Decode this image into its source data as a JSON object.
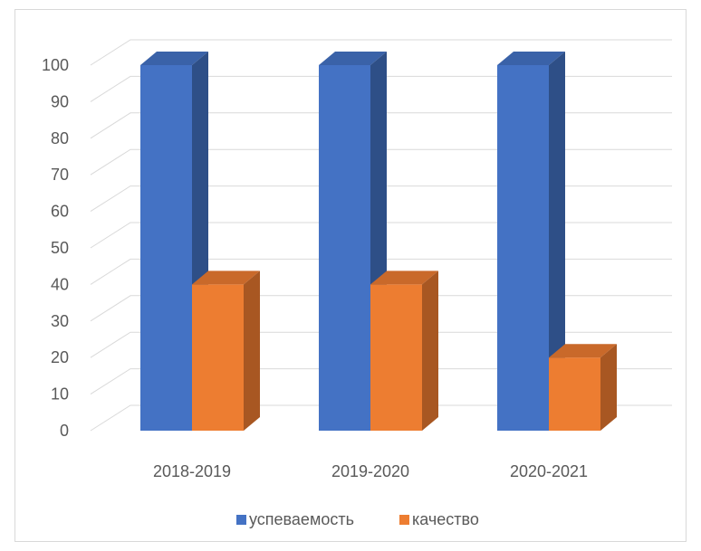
{
  "chart_data": {
    "type": "bar",
    "title": "",
    "xlabel": "",
    "ylabel": "",
    "categories": [
      "2018-2019",
      "2019-2020",
      "2020-2021"
    ],
    "series": [
      {
        "name": "успеваемость",
        "values": [
          100,
          100,
          100
        ],
        "color": "#4472C4",
        "top": "#3A62A8",
        "side": "#2E4F87"
      },
      {
        "name": "качество",
        "values": [
          40,
          40,
          20
        ],
        "color": "#ED7D31",
        "top": "#C9692A",
        "side": "#A85722"
      }
    ],
    "ylim": [
      0,
      100
    ],
    "yticks": [
      "0",
      "10",
      "20",
      "30",
      "40",
      "50",
      "60",
      "70",
      "80",
      "90",
      "100"
    ],
    "grid": true,
    "legend": "bottom",
    "style": "3d-clustered-column"
  }
}
